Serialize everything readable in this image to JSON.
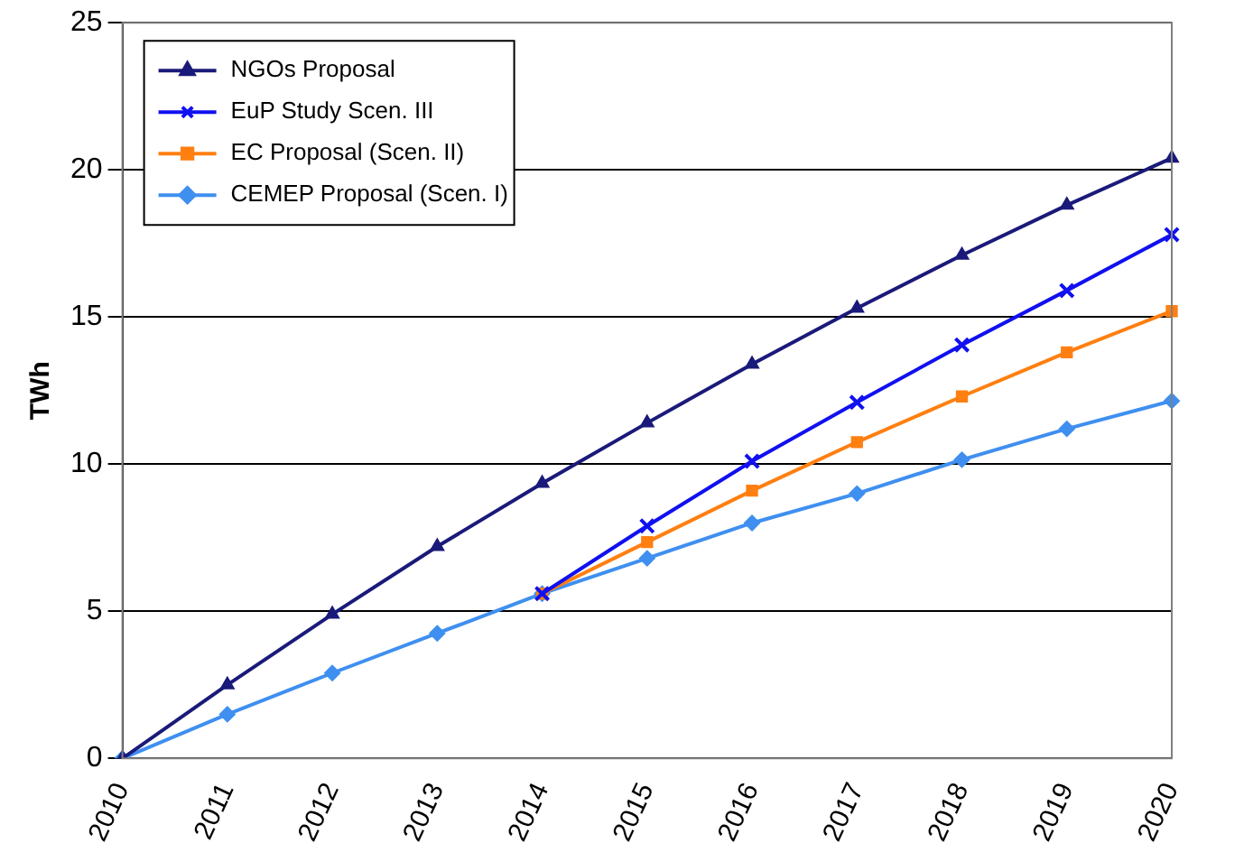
{
  "chart_data": {
    "type": "line",
    "ylabel": "TWh",
    "categories": [
      "2010",
      "2011",
      "2012",
      "2013",
      "2014",
      "2015",
      "2016",
      "2017",
      "2018",
      "2019",
      "2020"
    ],
    "ylim": [
      0,
      25
    ],
    "yticks": [
      0,
      5,
      10,
      15,
      20,
      25
    ],
    "grid": "y",
    "legend": "top left",
    "line_style": "solid",
    "series": [
      {
        "name": "NGOs Proposal",
        "color": "#1a1a7a",
        "marker": "triangle",
        "values": [
          0,
          2.5,
          4.9,
          7.2,
          9.35,
          11.4,
          13.4,
          15.3,
          17.1,
          18.8,
          20.4
        ]
      },
      {
        "name": "EuP Study Scen. III",
        "color": "#1010f0",
        "marker": "cross",
        "values": [
          null,
          null,
          null,
          null,
          5.6,
          7.9,
          10.1,
          12.1,
          14.05,
          15.9,
          17.8
        ]
      },
      {
        "name": "EC Proposal (Scen. II)",
        "color": "#ff7f10",
        "marker": "square",
        "values": [
          null,
          null,
          null,
          null,
          5.6,
          7.35,
          9.1,
          10.75,
          12.3,
          13.8,
          15.2
        ]
      },
      {
        "name": "CEMEP Proposal (Scen. I)",
        "color": "#3f8ff0",
        "marker": "diamond",
        "values": [
          0,
          1.5,
          2.9,
          4.25,
          5.6,
          6.8,
          8.0,
          9.0,
          10.15,
          11.2,
          12.15
        ]
      }
    ]
  }
}
